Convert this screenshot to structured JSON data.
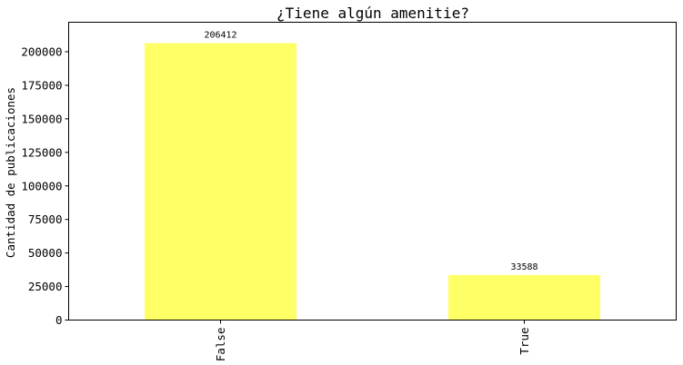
{
  "chart_data": {
    "type": "bar",
    "title": "¿Tiene algún amenitie?",
    "xlabel": "",
    "ylabel": "Cantidad de publicaciones",
    "categories": [
      "False",
      "True"
    ],
    "values": [
      206412,
      33588
    ],
    "data_labels": [
      "206412",
      "33588"
    ],
    "yticks": [
      0,
      25000,
      50000,
      75000,
      100000,
      125000,
      150000,
      175000,
      200000
    ],
    "ylim": [
      0,
      222000
    ],
    "bar_color": "#ffff66",
    "grid": false,
    "legend": "none"
  }
}
